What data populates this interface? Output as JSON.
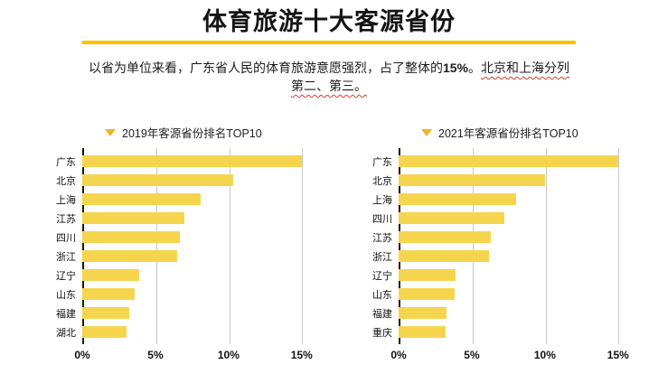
{
  "page": {
    "title": "体育旅游十大客源省份",
    "subtitle": {
      "line1_plain": "以省为单位来看，广东省人民的体育旅游意愿强烈，占了整体的",
      "line1_bold": "15%",
      "line1_after": "。",
      "line1_underlined": "北京和上海分列",
      "line2_underlined": "第二、第三。"
    }
  },
  "colors": {
    "bar_fill": "#F5D54E",
    "accent_gold": "#FFC000",
    "triangle_gold": "#F2B32A",
    "wavy_underline_red": "#E0392E",
    "gridline_gray": "#C8C8C8",
    "axis_black": "#151515"
  },
  "chart_data": [
    {
      "type": "bar",
      "orientation": "horizontal",
      "title": "2019年客源省份排名TOP10",
      "categories": [
        "广东",
        "北京",
        "上海",
        "江苏",
        "四川",
        "浙江",
        "辽宁",
        "山东",
        "福建",
        "湖北"
      ],
      "values": [
        15.0,
        10.3,
        8.1,
        7.0,
        6.7,
        6.5,
        3.9,
        3.6,
        3.2,
        3.0
      ],
      "unit": "%",
      "xlabel": "",
      "ylabel": "",
      "xlim": [
        0,
        16
      ],
      "x_ticks": [
        "0%",
        "5%",
        "10%",
        "15%"
      ],
      "x_tick_values": [
        0,
        5,
        10,
        15
      ],
      "grid": true,
      "legend": "none"
    },
    {
      "type": "bar",
      "orientation": "horizontal",
      "title": "2021年客源省份排名TOP10",
      "categories": [
        "广东",
        "北京",
        "上海",
        "四川",
        "江苏",
        "浙江",
        "辽宁",
        "山东",
        "福建",
        "重庆"
      ],
      "values": [
        15.0,
        10.0,
        8.0,
        7.2,
        6.3,
        6.2,
        3.9,
        3.8,
        3.3,
        3.2
      ],
      "unit": "%",
      "xlabel": "",
      "ylabel": "",
      "xlim": [
        0,
        16
      ],
      "x_ticks": [
        "0%",
        "5%",
        "10%",
        "15%"
      ],
      "x_tick_values": [
        0,
        5,
        10,
        15
      ],
      "grid": true,
      "legend": "none"
    }
  ]
}
